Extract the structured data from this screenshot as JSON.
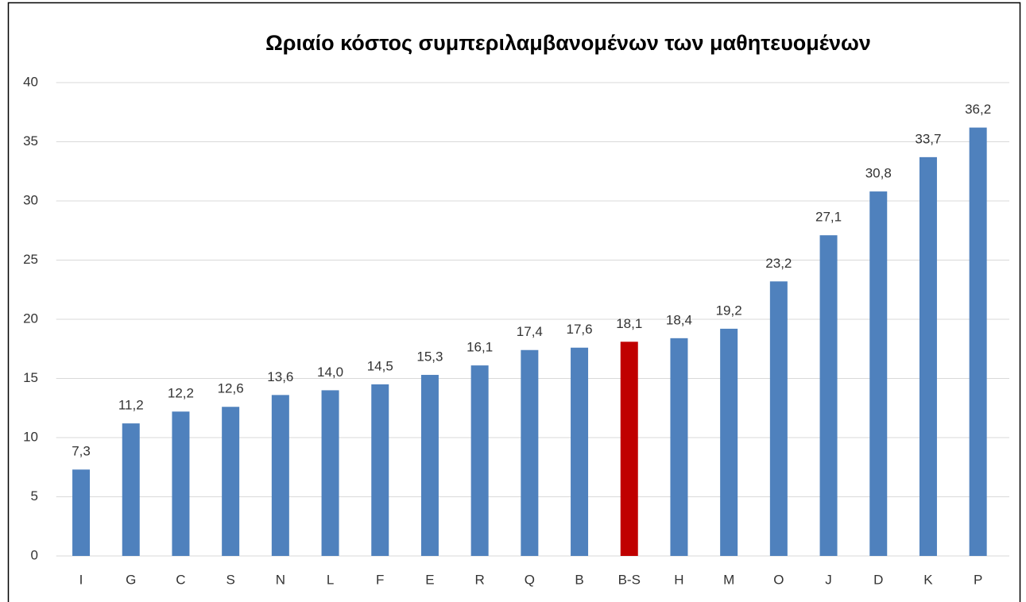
{
  "chart_data": {
    "type": "bar",
    "title": "Ωριαίο κόστος συμπεριλαμβανομένων των μαθητευομένων",
    "categories": [
      "I",
      "G",
      "C",
      "S",
      "N",
      "L",
      "F",
      "E",
      "R",
      "Q",
      "B",
      "B-S",
      "H",
      "M",
      "O",
      "J",
      "D",
      "K",
      "P"
    ],
    "values": [
      7.3,
      11.2,
      12.2,
      12.6,
      13.6,
      14.0,
      14.5,
      15.3,
      16.1,
      17.4,
      17.6,
      18.1,
      18.4,
      19.2,
      23.2,
      27.1,
      30.8,
      33.7,
      36.2
    ],
    "value_labels": [
      "7,3",
      "11,2",
      "12,2",
      "12,6",
      "13,6",
      "14,0",
      "14,5",
      "15,3",
      "16,1",
      "17,4",
      "17,6",
      "18,1",
      "18,4",
      "19,2",
      "23,2",
      "27,1",
      "30,8",
      "33,7",
      "36,2"
    ],
    "colors": [
      "#4f81bd",
      "#4f81bd",
      "#4f81bd",
      "#4f81bd",
      "#4f81bd",
      "#4f81bd",
      "#4f81bd",
      "#4f81bd",
      "#4f81bd",
      "#4f81bd",
      "#4f81bd",
      "#c00000",
      "#4f81bd",
      "#4f81bd",
      "#4f81bd",
      "#4f81bd",
      "#4f81bd",
      "#4f81bd",
      "#4f81bd"
    ],
    "ylim": [
      0,
      40
    ],
    "yticks": [
      0,
      5,
      10,
      15,
      20,
      25,
      30,
      35,
      40
    ],
    "grid": true
  }
}
